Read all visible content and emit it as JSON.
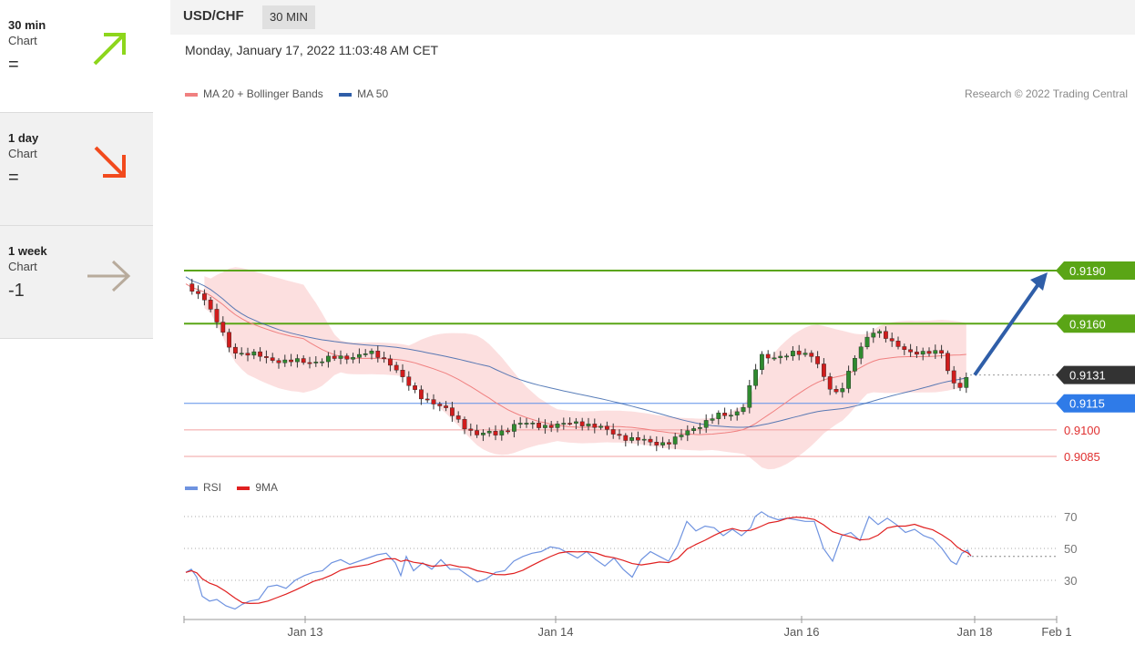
{
  "sidebar": {
    "items": [
      {
        "title": "30 min",
        "subtitle": "Chart",
        "score": "=",
        "direction": "up",
        "color": "#8dd61c"
      },
      {
        "title": "1 day",
        "subtitle": "Chart",
        "score": "=",
        "direction": "down",
        "color": "#f24a1d"
      },
      {
        "title": "1 week",
        "subtitle": "Chart",
        "score": "-1",
        "direction": "right",
        "color": "#b8ab9c"
      }
    ]
  },
  "header": {
    "pair": "USD/CHF",
    "timeframe": "30 MIN",
    "timestamp": "Monday, January 17, 2022 11:03:48 AM CET",
    "research": "Research © 2022 Trading Central"
  },
  "legend": {
    "main": [
      {
        "label": "MA 20 + Bollinger Bands",
        "color": "#f08080"
      },
      {
        "label": "MA 50",
        "color": "#2f5ea8"
      }
    ],
    "rsi": [
      {
        "label": "RSI",
        "color": "#6f93e0"
      },
      {
        "label": "9MA",
        "color": "#e02020"
      }
    ]
  },
  "chart_data": [
    {
      "type": "candlestick",
      "series": [
        {
          "name": "MA 20 + Bollinger Bands",
          "color": "#f08080"
        },
        {
          "name": "MA 50",
          "color": "#2f5ea8"
        }
      ],
      "levels": [
        {
          "label": "0.9190",
          "value": 0.919,
          "kind": "resistance",
          "color": "#5aa516"
        },
        {
          "label": "0.9160",
          "value": 0.916,
          "kind": "resistance",
          "color": "#5aa516"
        },
        {
          "label": "0.9131",
          "value": 0.9131,
          "kind": "last",
          "color": "#333333"
        },
        {
          "label": "0.9115",
          "value": 0.9115,
          "kind": "pivot",
          "color": "#2f7be8"
        },
        {
          "label": "0.9100",
          "value": 0.91,
          "kind": "support",
          "color": "#e03030"
        },
        {
          "label": "0.9085",
          "value": 0.9085,
          "kind": "support",
          "color": "#e03030"
        }
      ],
      "x_ticks": [
        "Jan 13",
        "Jan 14",
        "Jan 16",
        "Jan 18",
        "Feb 1"
      ],
      "forecast_arrow": {
        "from": 0.9131,
        "to": 0.919,
        "color": "#2f5ea8"
      },
      "price_range": [
        0.9083,
        0.9227
      ]
    },
    {
      "type": "line",
      "series": [
        {
          "name": "RSI",
          "color": "#6f93e0"
        },
        {
          "name": "9MA",
          "color": "#e02020"
        }
      ],
      "y_ticks": [
        70,
        50,
        30
      ],
      "last_value": 45,
      "ylim": [
        10,
        82
      ]
    }
  ]
}
